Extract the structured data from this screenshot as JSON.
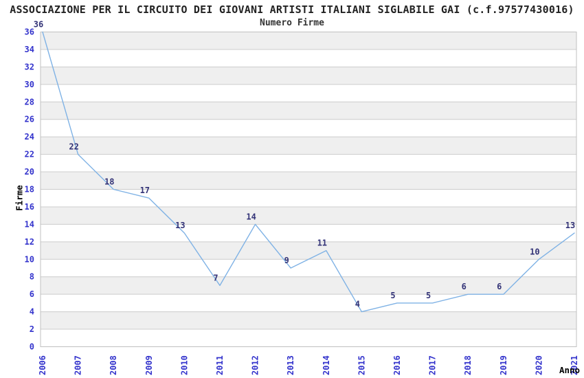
{
  "chart_data": {
    "type": "line",
    "title": "ASSOCIAZIONE PER IL CIRCUITO DEI GIOVANI ARTISTI ITALIANI SIGLABILE GAI (c.f.97577430016)",
    "subtitle": "Numero Firme",
    "xlabel": "Anno",
    "ylabel": "Firme",
    "categories": [
      "2006",
      "2007",
      "2008",
      "2009",
      "2010",
      "2011",
      "2012",
      "2013",
      "2014",
      "2015",
      "2016",
      "2017",
      "2018",
      "2019",
      "2020",
      "2021"
    ],
    "values": [
      36,
      22,
      18,
      17,
      13,
      7,
      14,
      9,
      11,
      4,
      5,
      5,
      6,
      6,
      10,
      13
    ],
    "ylim": [
      0,
      36
    ],
    "ytick_step": 2,
    "grid": "horizontal-bands",
    "legend": "none",
    "colors": {
      "line": "#7fb2e5",
      "tick_label": "#3333cc",
      "point_label": "#333377",
      "band": "#efefef",
      "gridline": "#cccccc",
      "border": "#c0c0c0",
      "title": "#222222",
      "subtitle": "#333333",
      "axis_label": "#000000"
    }
  }
}
